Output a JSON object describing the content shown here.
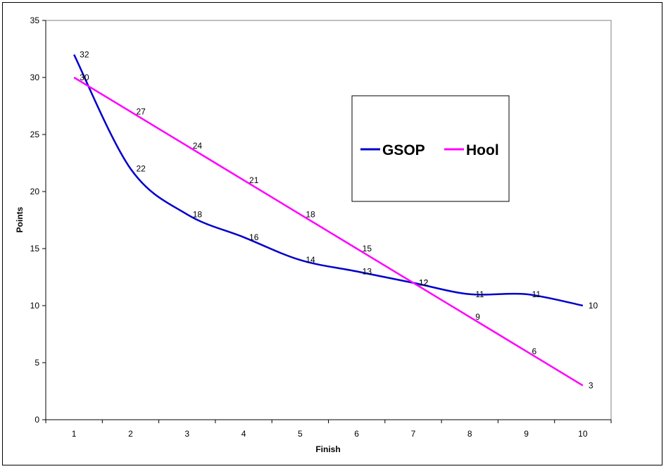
{
  "chart_data": {
    "type": "line",
    "title": "",
    "xlabel": "Finish",
    "ylabel": "Points",
    "categories": [
      "1",
      "2",
      "3",
      "4",
      "5",
      "6",
      "7",
      "8",
      "9",
      "10"
    ],
    "x": [
      1,
      2,
      3,
      4,
      5,
      6,
      7,
      8,
      9,
      10
    ],
    "ylim": [
      0,
      35
    ],
    "yticks": [
      0,
      5,
      10,
      15,
      20,
      25,
      30,
      35
    ],
    "grid": false,
    "legend": "inside, upper-right",
    "series": [
      {
        "name": "GSOP",
        "color": "#0000cc",
        "values": [
          32,
          22,
          18,
          16,
          14,
          13,
          12,
          11,
          11,
          10
        ]
      },
      {
        "name": "Hool",
        "color": "#ff00ff",
        "values": [
          30,
          27,
          24,
          21,
          18,
          15,
          12,
          9,
          6,
          3
        ]
      }
    ]
  }
}
